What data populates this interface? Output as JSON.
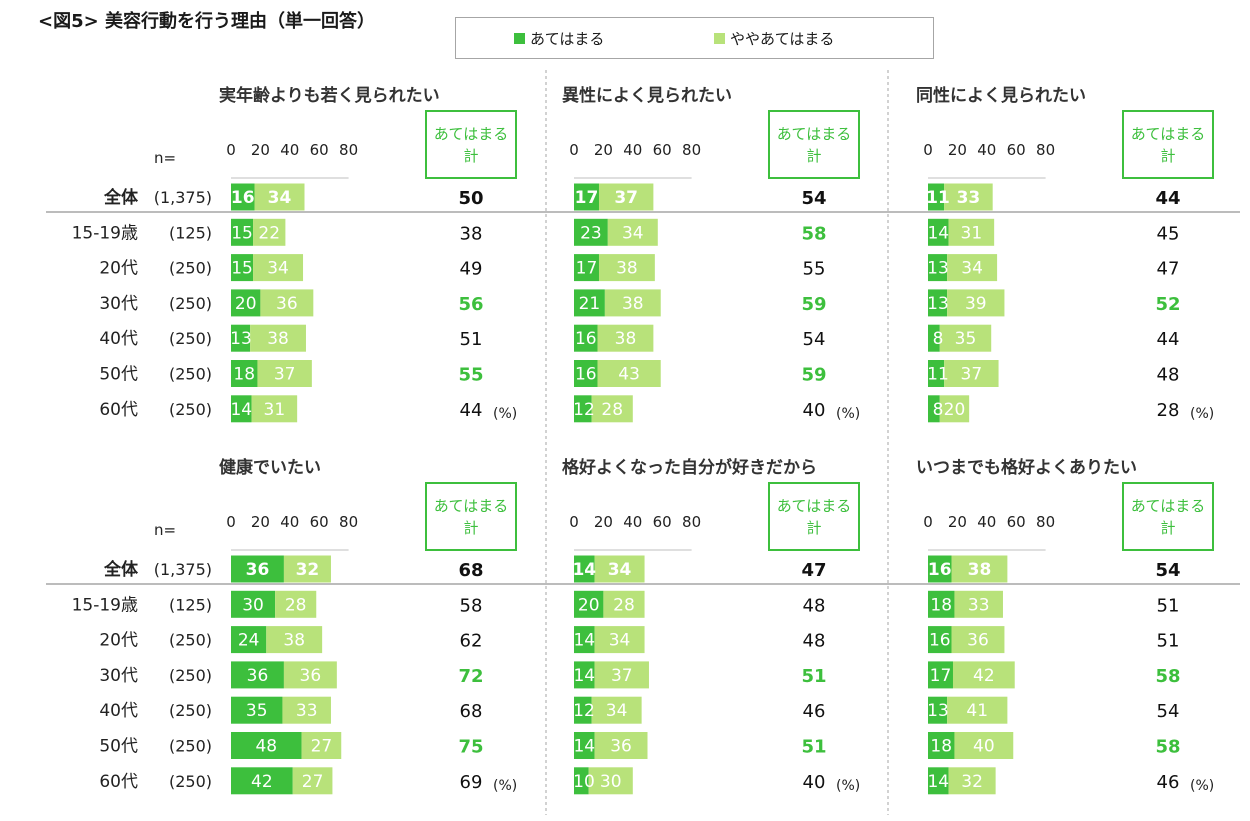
{
  "figure_title": "<図5> 美容行動を行う理由（単一回答）",
  "legend": [
    {
      "label": "あてはまる",
      "color": "#3dbf3d"
    },
    {
      "label": "ややあてはまる",
      "color": "#b8e27a"
    }
  ],
  "labels": {
    "n": "n=",
    "total_box": [
      "あてはまる",
      "計"
    ],
    "percent": "(%)"
  },
  "colors": {
    "highlight": "#3dbf3d",
    "primary": "#3dbf3d",
    "secondary": "#b8e27a"
  },
  "chart_data": [
    {
      "type": "bar",
      "stacked": true,
      "orientation": "horizontal",
      "title": "実年齢よりも若く見られたい",
      "xlim": [
        0,
        80
      ],
      "x_ticks": [
        "0",
        "20",
        "40",
        "60",
        "80"
      ],
      "categories": [
        "全体",
        "15-19歳",
        "20代",
        "30代",
        "40代",
        "50代",
        "60代"
      ],
      "n": [
        "(1,375)",
        "(125)",
        "(250)",
        "(250)",
        "(250)",
        "(250)",
        "(250)"
      ],
      "series": [
        {
          "name": "あてはまる",
          "values": [
            16,
            15,
            15,
            20,
            13,
            18,
            14
          ]
        },
        {
          "name": "ややあてはまる",
          "values": [
            34,
            22,
            34,
            36,
            38,
            37,
            31
          ]
        }
      ],
      "total_label": "あてはまる計",
      "totals": [
        50,
        38,
        49,
        56,
        51,
        55,
        44
      ],
      "highlighted": [
        false,
        false,
        false,
        true,
        false,
        true,
        false
      ]
    },
    {
      "type": "bar",
      "stacked": true,
      "orientation": "horizontal",
      "title": "異性によく見られたい",
      "xlim": [
        0,
        80
      ],
      "x_ticks": [
        "0",
        "20",
        "40",
        "60",
        "80"
      ],
      "categories": [
        "全体",
        "15-19歳",
        "20代",
        "30代",
        "40代",
        "50代",
        "60代"
      ],
      "series": [
        {
          "name": "あてはまる",
          "values": [
            17,
            23,
            17,
            21,
            16,
            16,
            12
          ]
        },
        {
          "name": "ややあてはまる",
          "values": [
            37,
            34,
            38,
            38,
            38,
            43,
            28
          ]
        }
      ],
      "total_label": "あてはまる計",
      "totals": [
        54,
        58,
        55,
        59,
        54,
        59,
        40
      ],
      "highlighted": [
        false,
        true,
        false,
        true,
        false,
        true,
        false
      ]
    },
    {
      "type": "bar",
      "stacked": true,
      "orientation": "horizontal",
      "title": "同性によく見られたい",
      "xlim": [
        0,
        80
      ],
      "x_ticks": [
        "0",
        "20",
        "40",
        "60",
        "80"
      ],
      "categories": [
        "全体",
        "15-19歳",
        "20代",
        "30代",
        "40代",
        "50代",
        "60代"
      ],
      "series": [
        {
          "name": "あてはまる",
          "values": [
            11,
            14,
            13,
            13,
            8,
            11,
            8
          ]
        },
        {
          "name": "ややあてはまる",
          "values": [
            33,
            31,
            34,
            39,
            35,
            37,
            20
          ]
        }
      ],
      "total_label": "あてはまる計",
      "totals": [
        44,
        45,
        47,
        52,
        44,
        48,
        28
      ],
      "highlighted": [
        false,
        false,
        false,
        true,
        false,
        false,
        false
      ]
    },
    {
      "type": "bar",
      "stacked": true,
      "orientation": "horizontal",
      "title": "健康でいたい",
      "xlim": [
        0,
        80
      ],
      "x_ticks": [
        "0",
        "20",
        "40",
        "60",
        "80"
      ],
      "categories": [
        "全体",
        "15-19歳",
        "20代",
        "30代",
        "40代",
        "50代",
        "60代"
      ],
      "n": [
        "(1,375)",
        "(125)",
        "(250)",
        "(250)",
        "(250)",
        "(250)",
        "(250)"
      ],
      "series": [
        {
          "name": "あてはまる",
          "values": [
            36,
            30,
            24,
            36,
            35,
            48,
            42
          ]
        },
        {
          "name": "ややあてはまる",
          "values": [
            32,
            28,
            38,
            36,
            33,
            27,
            27
          ]
        }
      ],
      "total_label": "あてはまる計",
      "totals": [
        68,
        58,
        62,
        72,
        68,
        75,
        69
      ],
      "highlighted": [
        false,
        false,
        false,
        true,
        false,
        true,
        false
      ]
    },
    {
      "type": "bar",
      "stacked": true,
      "orientation": "horizontal",
      "title": "格好よくなった自分が好きだから",
      "xlim": [
        0,
        80
      ],
      "x_ticks": [
        "0",
        "20",
        "40",
        "60",
        "80"
      ],
      "categories": [
        "全体",
        "15-19歳",
        "20代",
        "30代",
        "40代",
        "50代",
        "60代"
      ],
      "series": [
        {
          "name": "あてはまる",
          "values": [
            14,
            20,
            14,
            14,
            12,
            14,
            10
          ]
        },
        {
          "name": "ややあてはまる",
          "values": [
            34,
            28,
            34,
            37,
            34,
            36,
            30
          ]
        }
      ],
      "total_label": "あてはまる計",
      "totals": [
        47,
        48,
        48,
        51,
        46,
        51,
        40
      ],
      "highlighted": [
        false,
        false,
        false,
        true,
        false,
        true,
        false
      ]
    },
    {
      "type": "bar",
      "stacked": true,
      "orientation": "horizontal",
      "title": "いつまでも格好よくありたい",
      "xlim": [
        0,
        80
      ],
      "x_ticks": [
        "0",
        "20",
        "40",
        "60",
        "80"
      ],
      "categories": [
        "全体",
        "15-19歳",
        "20代",
        "30代",
        "40代",
        "50代",
        "60代"
      ],
      "series": [
        {
          "name": "あてはまる",
          "values": [
            16,
            18,
            16,
            17,
            13,
            18,
            14
          ]
        },
        {
          "name": "ややあてはまる",
          "values": [
            38,
            33,
            36,
            42,
            41,
            40,
            32
          ]
        }
      ],
      "total_label": "あてはまる計",
      "totals": [
        54,
        51,
        51,
        58,
        54,
        58,
        46
      ],
      "highlighted": [
        false,
        false,
        false,
        true,
        false,
        true,
        false
      ]
    }
  ]
}
